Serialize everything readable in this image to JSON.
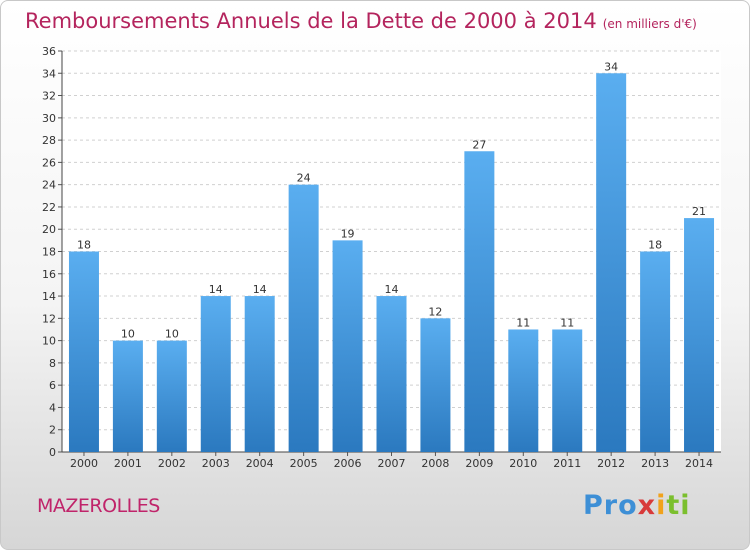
{
  "chart_data": {
    "type": "bar",
    "title": "Remboursements Annuels de la Dette de 2000 à 2014",
    "subtitle": "(en milliers d'€)",
    "categories": [
      "2000",
      "2001",
      "2002",
      "2003",
      "2004",
      "2005",
      "2006",
      "2007",
      "2008",
      "2009",
      "2010",
      "2011",
      "2012",
      "2013",
      "2014"
    ],
    "values": [
      18,
      10,
      10,
      14,
      14,
      24,
      19,
      14,
      12,
      27,
      11,
      11,
      34,
      18,
      21
    ],
    "ylim": [
      0,
      36
    ],
    "yticks": [
      0,
      2,
      4,
      6,
      8,
      10,
      12,
      14,
      16,
      18,
      20,
      22,
      24,
      26,
      28,
      30,
      32,
      34,
      36
    ],
    "grid": true,
    "bar_color": "#4a9de0"
  },
  "footer": {
    "city": "MAZEROLLES",
    "logo": [
      "Pro",
      "x",
      "i",
      "ti"
    ]
  }
}
